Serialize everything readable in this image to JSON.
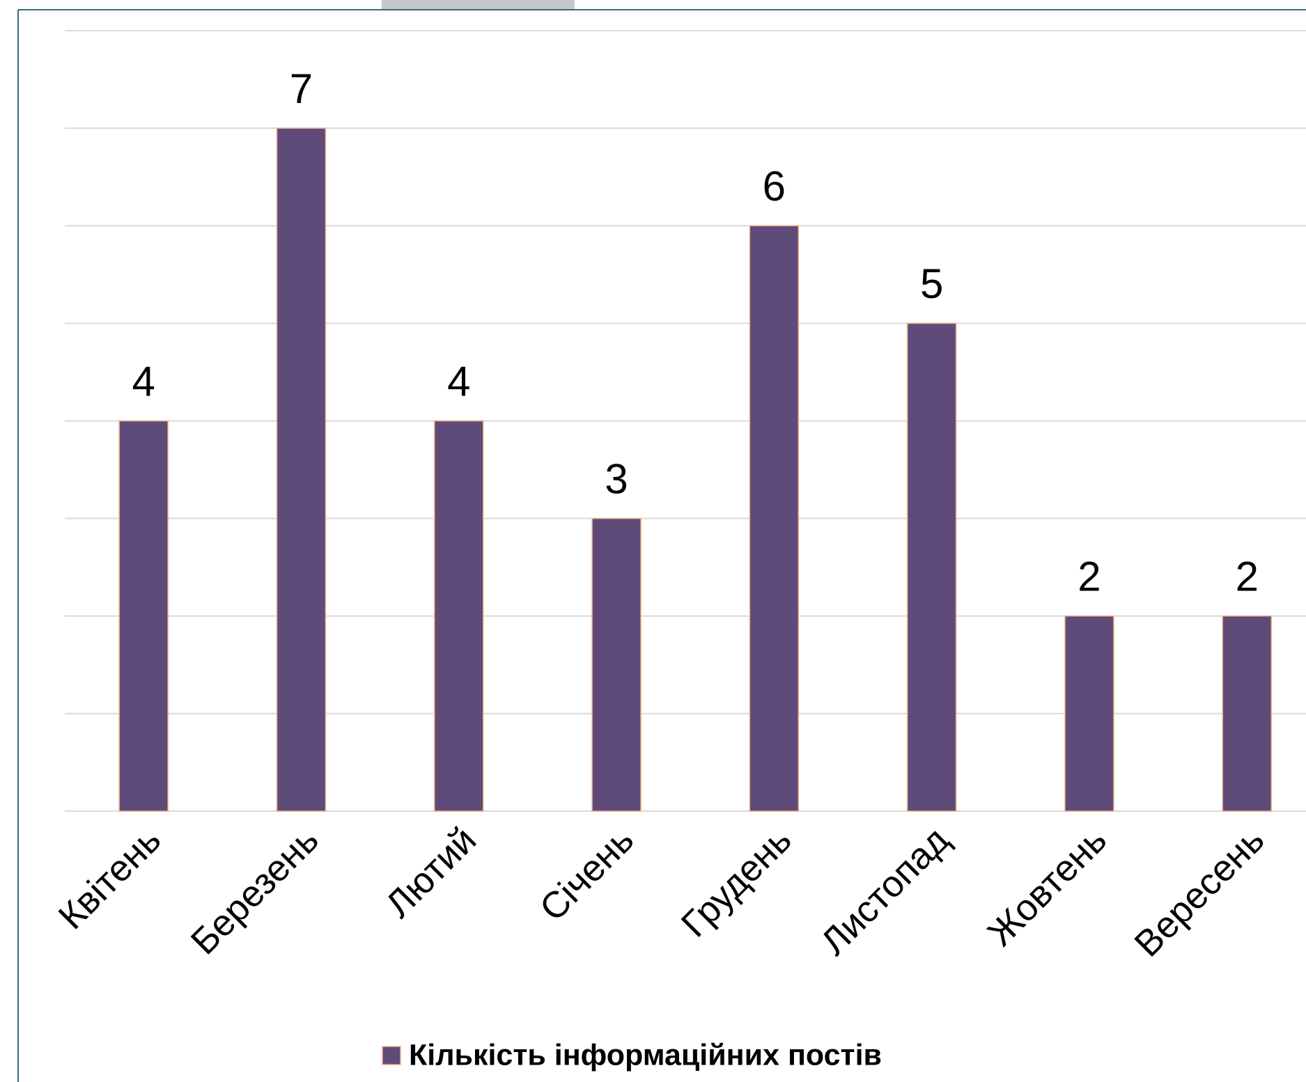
{
  "chart_data": {
    "type": "bar",
    "categories": [
      "Квітень",
      "Березень",
      "Лютий",
      "Січень",
      "Грудень",
      "Листопад",
      "Жовтень",
      "Вересень"
    ],
    "series": [
      {
        "name": "Кількість інформаційних постів",
        "color": "#5f4b7a",
        "values": [
          4,
          7,
          4,
          3,
          6,
          5,
          2,
          2
        ]
      }
    ],
    "ylim": [
      0,
      8
    ],
    "yticks": [
      0,
      1,
      2,
      3,
      4,
      5,
      6,
      7,
      8
    ],
    "grid": true,
    "legend": "bottom"
  }
}
